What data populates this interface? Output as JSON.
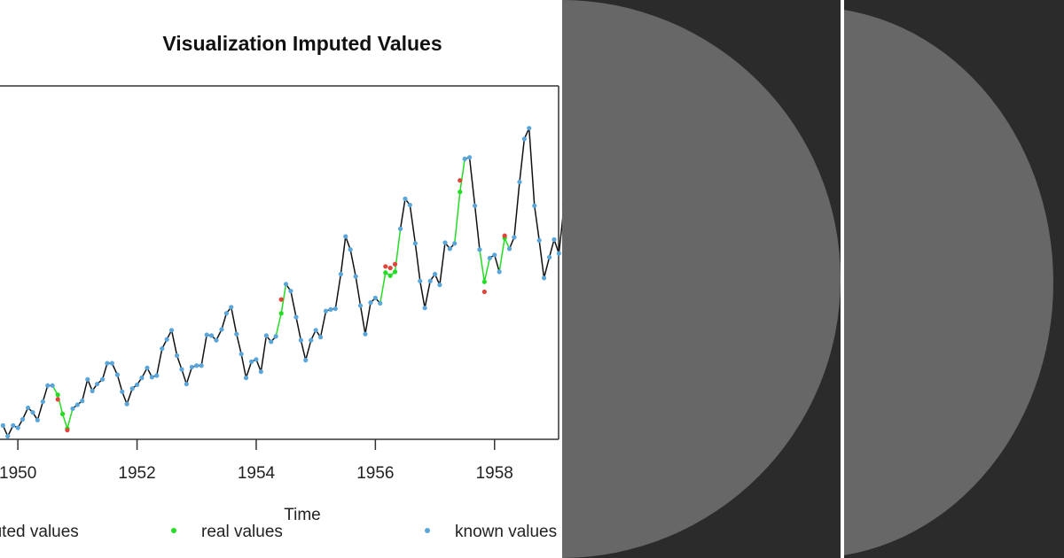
{
  "chart_data": {
    "type": "line",
    "title": "Visualization Imputed Values",
    "xlabel": "Time",
    "ylabel": "",
    "xlim": [
      1949.7,
      1959.3
    ],
    "ylim": [
      100,
      560
    ],
    "x_ticks": [
      1950,
      1952,
      1954,
      1956,
      1958
    ],
    "x_tick_labels": [
      "1950",
      "1952",
      "1954",
      "1956",
      "1958"
    ],
    "grid": false,
    "legend_position": "bottom",
    "legend": [
      {
        "label": "imputed values",
        "color": "#e0453c"
      },
      {
        "label": "real values",
        "color": "#22dd22"
      },
      {
        "label": "known values",
        "color": "#5aa6db"
      }
    ],
    "line_color": "#111111",
    "gap_line_color": "#22dd22",
    "known_values": [
      {
        "x": 1949.75,
        "y": 118
      },
      {
        "x": 1949.83,
        "y": 104
      },
      {
        "x": 1949.92,
        "y": 118
      },
      {
        "x": 1950.0,
        "y": 115
      },
      {
        "x": 1950.08,
        "y": 126
      },
      {
        "x": 1950.17,
        "y": 141
      },
      {
        "x": 1950.25,
        "y": 135
      },
      {
        "x": 1950.33,
        "y": 125
      },
      {
        "x": 1950.42,
        "y": 149
      },
      {
        "x": 1950.5,
        "y": 170
      },
      {
        "x": 1950.58,
        "y": 170
      },
      {
        "x": 1950.92,
        "y": 140
      },
      {
        "x": 1951.0,
        "y": 145
      },
      {
        "x": 1951.08,
        "y": 150
      },
      {
        "x": 1951.17,
        "y": 178
      },
      {
        "x": 1951.25,
        "y": 163
      },
      {
        "x": 1951.33,
        "y": 172
      },
      {
        "x": 1951.42,
        "y": 178
      },
      {
        "x": 1951.5,
        "y": 199
      },
      {
        "x": 1951.58,
        "y": 199
      },
      {
        "x": 1951.67,
        "y": 184
      },
      {
        "x": 1951.75,
        "y": 162
      },
      {
        "x": 1951.83,
        "y": 146
      },
      {
        "x": 1951.92,
        "y": 166
      },
      {
        "x": 1952.0,
        "y": 171
      },
      {
        "x": 1952.08,
        "y": 180
      },
      {
        "x": 1952.17,
        "y": 193
      },
      {
        "x": 1952.25,
        "y": 181
      },
      {
        "x": 1952.33,
        "y": 183
      },
      {
        "x": 1952.42,
        "y": 218
      },
      {
        "x": 1952.5,
        "y": 230
      },
      {
        "x": 1952.58,
        "y": 242
      },
      {
        "x": 1952.67,
        "y": 209
      },
      {
        "x": 1952.75,
        "y": 191
      },
      {
        "x": 1952.83,
        "y": 172
      },
      {
        "x": 1952.92,
        "y": 194
      },
      {
        "x": 1953.0,
        "y": 196
      },
      {
        "x": 1953.08,
        "y": 196
      },
      {
        "x": 1953.17,
        "y": 236
      },
      {
        "x": 1953.25,
        "y": 235
      },
      {
        "x": 1953.33,
        "y": 229
      },
      {
        "x": 1953.42,
        "y": 243
      },
      {
        "x": 1953.5,
        "y": 264
      },
      {
        "x": 1953.58,
        "y": 272
      },
      {
        "x": 1953.67,
        "y": 237
      },
      {
        "x": 1953.75,
        "y": 211
      },
      {
        "x": 1953.83,
        "y": 180
      },
      {
        "x": 1953.92,
        "y": 201
      },
      {
        "x": 1954.0,
        "y": 204
      },
      {
        "x": 1954.08,
        "y": 188
      },
      {
        "x": 1954.17,
        "y": 235
      },
      {
        "x": 1954.25,
        "y": 227
      },
      {
        "x": 1954.33,
        "y": 234
      },
      {
        "x": 1954.5,
        "y": 302
      },
      {
        "x": 1954.58,
        "y": 293
      },
      {
        "x": 1954.67,
        "y": 259
      },
      {
        "x": 1954.75,
        "y": 229
      },
      {
        "x": 1954.83,
        "y": 203
      },
      {
        "x": 1954.92,
        "y": 229
      },
      {
        "x": 1955.0,
        "y": 242
      },
      {
        "x": 1955.08,
        "y": 233
      },
      {
        "x": 1955.17,
        "y": 267
      },
      {
        "x": 1955.25,
        "y": 269
      },
      {
        "x": 1955.33,
        "y": 270
      },
      {
        "x": 1955.42,
        "y": 315
      },
      {
        "x": 1955.5,
        "y": 364
      },
      {
        "x": 1955.58,
        "y": 347
      },
      {
        "x": 1955.67,
        "y": 312
      },
      {
        "x": 1955.75,
        "y": 274
      },
      {
        "x": 1955.83,
        "y": 237
      },
      {
        "x": 1955.92,
        "y": 278
      },
      {
        "x": 1956.0,
        "y": 284
      },
      {
        "x": 1956.08,
        "y": 277
      },
      {
        "x": 1956.42,
        "y": 374
      },
      {
        "x": 1956.5,
        "y": 413
      },
      {
        "x": 1956.58,
        "y": 405
      },
      {
        "x": 1956.67,
        "y": 355
      },
      {
        "x": 1956.75,
        "y": 306
      },
      {
        "x": 1956.83,
        "y": 271
      },
      {
        "x": 1956.92,
        "y": 306
      },
      {
        "x": 1957.0,
        "y": 315
      },
      {
        "x": 1957.08,
        "y": 301
      },
      {
        "x": 1957.17,
        "y": 356
      },
      {
        "x": 1957.25,
        "y": 348
      },
      {
        "x": 1957.33,
        "y": 355
      },
      {
        "x": 1957.5,
        "y": 465
      },
      {
        "x": 1957.58,
        "y": 467
      },
      {
        "x": 1957.67,
        "y": 404
      },
      {
        "x": 1957.75,
        "y": 347
      },
      {
        "x": 1957.92,
        "y": 336
      },
      {
        "x": 1958.0,
        "y": 340
      },
      {
        "x": 1958.08,
        "y": 318
      },
      {
        "x": 1958.25,
        "y": 348
      },
      {
        "x": 1958.33,
        "y": 363
      },
      {
        "x": 1958.42,
        "y": 435
      },
      {
        "x": 1958.5,
        "y": 491
      },
      {
        "x": 1958.58,
        "y": 505
      },
      {
        "x": 1958.67,
        "y": 404
      },
      {
        "x": 1958.75,
        "y": 359
      },
      {
        "x": 1958.83,
        "y": 310
      },
      {
        "x": 1958.92,
        "y": 337
      },
      {
        "x": 1959.0,
        "y": 360
      },
      {
        "x": 1959.08,
        "y": 342
      },
      {
        "x": 1959.17,
        "y": 406
      },
      {
        "x": 1959.25,
        "y": 396
      }
    ],
    "real_values": [
      {
        "x": 1950.67,
        "y": 158
      },
      {
        "x": 1950.75,
        "y": 133
      },
      {
        "x": 1950.83,
        "y": 114
      },
      {
        "x": 1954.42,
        "y": 264
      },
      {
        "x": 1956.17,
        "y": 317
      },
      {
        "x": 1956.25,
        "y": 313
      },
      {
        "x": 1956.33,
        "y": 318
      },
      {
        "x": 1957.42,
        "y": 422
      },
      {
        "x": 1957.83,
        "y": 305
      },
      {
        "x": 1958.17,
        "y": 362
      }
    ],
    "imputed_values": [
      {
        "x": 1950.67,
        "y": 152
      },
      {
        "x": 1950.83,
        "y": 112
      },
      {
        "x": 1954.42,
        "y": 282
      },
      {
        "x": 1956.17,
        "y": 325
      },
      {
        "x": 1956.25,
        "y": 323
      },
      {
        "x": 1956.33,
        "y": 328
      },
      {
        "x": 1957.42,
        "y": 437
      },
      {
        "x": 1957.83,
        "y": 292
      },
      {
        "x": 1958.17,
        "y": 365
      }
    ]
  },
  "colors": {
    "background_right": "#2b2b2b",
    "disc": "#676767",
    "divider": "#ffffff"
  }
}
